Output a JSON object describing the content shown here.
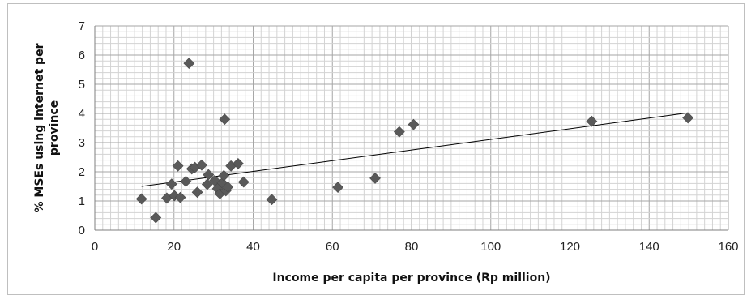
{
  "chart_data": {
    "type": "scatter",
    "title": "",
    "xlabel": "Income per capita per province (Rp million)",
    "ylabel": "% MSEs using internet per province",
    "xlim": [
      0,
      160
    ],
    "ylim": [
      0,
      7
    ],
    "x_ticks": [
      "0",
      "20",
      "40",
      "60",
      "80",
      "100",
      "120",
      "140",
      "160"
    ],
    "y_ticks": [
      "0",
      "1",
      "2",
      "3",
      "4",
      "5",
      "6",
      "7"
    ],
    "grid": true,
    "legend": "none",
    "marker_color": "#595959",
    "series": [
      {
        "points": [
          {
            "x": 11.8,
            "y": 1.07
          },
          {
            "x": 15.4,
            "y": 0.43
          },
          {
            "x": 18.2,
            "y": 1.1
          },
          {
            "x": 19.4,
            "y": 1.58
          },
          {
            "x": 20.1,
            "y": 1.18
          },
          {
            "x": 21.0,
            "y": 2.2
          },
          {
            "x": 21.6,
            "y": 1.12
          },
          {
            "x": 23.0,
            "y": 1.67
          },
          {
            "x": 23.8,
            "y": 5.72
          },
          {
            "x": 24.5,
            "y": 2.1
          },
          {
            "x": 25.3,
            "y": 2.15
          },
          {
            "x": 25.9,
            "y": 1.3
          },
          {
            "x": 27.0,
            "y": 2.23
          },
          {
            "x": 28.4,
            "y": 1.57
          },
          {
            "x": 28.7,
            "y": 1.9
          },
          {
            "x": 30.3,
            "y": 1.7
          },
          {
            "x": 31.0,
            "y": 1.42
          },
          {
            "x": 31.6,
            "y": 1.25
          },
          {
            "x": 32.2,
            "y": 1.62
          },
          {
            "x": 32.6,
            "y": 1.87
          },
          {
            "x": 32.8,
            "y": 3.8
          },
          {
            "x": 33.1,
            "y": 1.35
          },
          {
            "x": 33.6,
            "y": 1.48
          },
          {
            "x": 34.4,
            "y": 2.2
          },
          {
            "x": 36.2,
            "y": 2.28
          },
          {
            "x": 37.6,
            "y": 1.65
          },
          {
            "x": 44.7,
            "y": 1.05
          },
          {
            "x": 61.4,
            "y": 1.47
          },
          {
            "x": 70.8,
            "y": 1.78
          },
          {
            "x": 76.9,
            "y": 3.37
          },
          {
            "x": 80.5,
            "y": 3.62
          },
          {
            "x": 125.5,
            "y": 3.73
          },
          {
            "x": 149.8,
            "y": 3.85
          }
        ]
      }
    ],
    "trendline": {
      "x": [
        11.8,
        149.8
      ],
      "y": [
        1.5,
        4.02
      ]
    }
  }
}
